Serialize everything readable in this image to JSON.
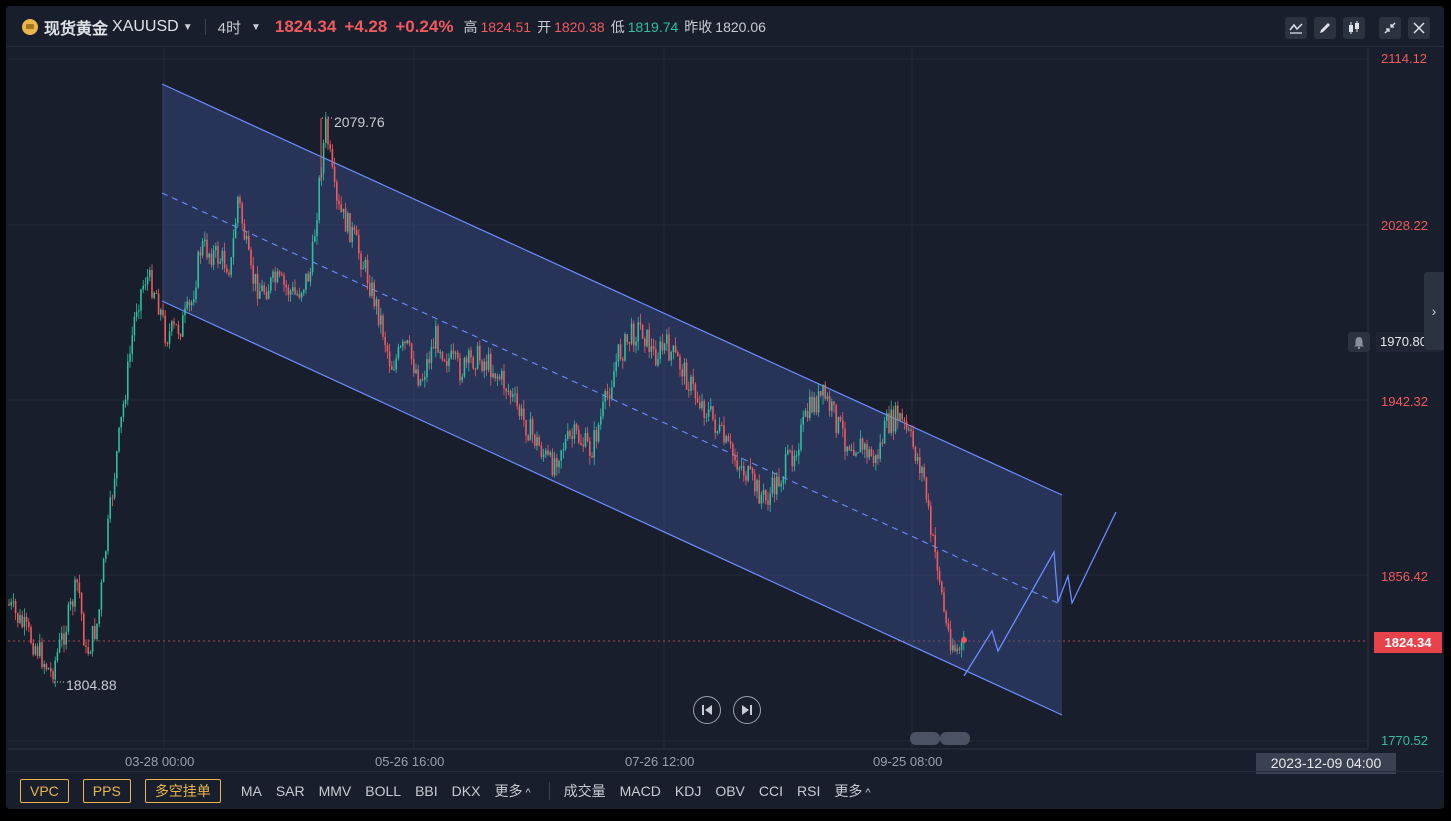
{
  "header": {
    "name": "现货黄金",
    "code": "XAUUSD",
    "period": "4时",
    "last_price": "1824.34",
    "change": "+4.28",
    "change_pct": "+0.24%",
    "high_label": "高",
    "high": "1824.51",
    "open_label": "开",
    "open": "1820.38",
    "low_label": "低",
    "low": "1819.74",
    "prev_close_label": "昨收",
    "prev_close": "1820.06"
  },
  "y_axis": {
    "labels": [
      "2114.12",
      "2028.22",
      "1942.32",
      "1856.42",
      "1770.52"
    ],
    "current_price_tag": "1824.34",
    "crosshair_price_tag": "1970.80"
  },
  "x_axis": {
    "labels": [
      "03-28 00:00",
      "05-26 16:00",
      "07-26 12:00",
      "09-25 08:00"
    ],
    "cursor_time": "2023-12-09 04:00"
  },
  "annotations": {
    "high_marker": "2079.76",
    "low_marker": "1804.88"
  },
  "colors": {
    "up": "#2fbfa0",
    "down": "#ef5a5e",
    "channel_line": "#6c8cff",
    "channel_fill": "#3b4f8f",
    "background": "#181e2b"
  },
  "footer": {
    "overlay_buttons": [
      "VPC",
      "PPS",
      "多空挂单"
    ],
    "main_indicators": [
      "MA",
      "SAR",
      "MMV",
      "BOLL",
      "BBI",
      "DKX"
    ],
    "more_1": "更多",
    "sub_indicators": [
      "成交量",
      "MACD",
      "KDJ",
      "OBV",
      "CCI",
      "RSI"
    ],
    "more_2": "更多"
  },
  "icons": [
    "coin-icon",
    "line-chart-icon",
    "pencil-icon",
    "candles-icon",
    "collapse-icon",
    "close-icon",
    "bell-icon",
    "chevron-right-icon",
    "prev-icon",
    "next-icon"
  ]
}
